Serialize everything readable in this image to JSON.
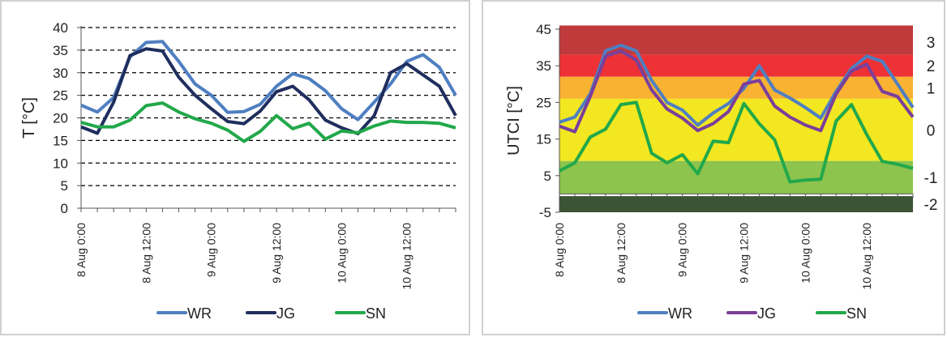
{
  "chart_data": [
    {
      "type": "line",
      "ylabel": "T [°C]",
      "ylim": [
        0,
        40
      ],
      "yticks": [
        "0",
        "5",
        "10",
        "15",
        "20",
        "25",
        "30",
        "35",
        "40"
      ],
      "grid": "dashed horizontal",
      "xtick_labels": [
        "8 Aug 0:00",
        "8 Aug 12:00",
        "9 Aug 0:00",
        "9 Aug 12:00",
        "10 Aug 0:00",
        "10 Aug 12:00"
      ],
      "legend_position": "bottom",
      "series": [
        {
          "name": "WR",
          "color": "#4f7fc1",
          "values": [
            22.8,
            21.3,
            24.5,
            33.5,
            36.7,
            36.9,
            32.5,
            27.5,
            25,
            21.2,
            21.4,
            23,
            27,
            29.8,
            28.7,
            26,
            22,
            19.6,
            23.5,
            27.5,
            32.5,
            34,
            31.2,
            25
          ]
        },
        {
          "name": "JG",
          "color": "#1f2e5e",
          "values": [
            18,
            16.6,
            23.5,
            33.8,
            35.3,
            34.8,
            29,
            25,
            22,
            19.2,
            18.7,
            21.5,
            25.8,
            27,
            24,
            19.5,
            17.8,
            16.5,
            20.5,
            30,
            32,
            29.5,
            27,
            20.5
          ]
        },
        {
          "name": "SN",
          "color": "#22a84a",
          "values": [
            19,
            18,
            18,
            19.5,
            22.7,
            23.3,
            21.3,
            19.8,
            18.8,
            17.3,
            14.8,
            17,
            20.5,
            17.6,
            18.8,
            15.3,
            17.1,
            16.7,
            18.2,
            19.3,
            19,
            19,
            18.8,
            17.8
          ]
        }
      ]
    },
    {
      "type": "line",
      "ylabel": "UTCI [°C]",
      "ylim": [
        -5,
        45
      ],
      "yticks": [
        "-5",
        "5",
        "15",
        "25",
        "35",
        "45"
      ],
      "secondary_axis_labels": [
        "3",
        "2",
        "1",
        "0",
        "-1",
        "-2"
      ],
      "bands": [
        {
          "from": 38,
          "to": 46,
          "color": "#c0393b",
          "label": "3"
        },
        {
          "from": 32,
          "to": 38,
          "color": "#ee3135",
          "label": "2"
        },
        {
          "from": 26,
          "to": 32,
          "color": "#f9b232",
          "label": "1"
        },
        {
          "from": 9,
          "to": 26,
          "color": "#f2e721",
          "label": "0"
        },
        {
          "from": 0,
          "to": 9,
          "color": "#8dc44e",
          "label": "-1"
        },
        {
          "from": -5,
          "to": -0.6,
          "color": "#3c5334",
          "label": "-2"
        }
      ],
      "xtick_labels": [
        "8 Aug 0:00",
        "8 Aug 12:00",
        "9 Aug 0:00",
        "9 Aug 12:00",
        "10 Aug 0:00",
        "10 Aug 12:00"
      ],
      "legend_position": "bottom",
      "series": [
        {
          "name": "WR",
          "color": "#4f7fc1",
          "values": [
            19.6,
            21,
            27.3,
            39.1,
            40.6,
            39.1,
            31,
            25,
            22.9,
            18.8,
            22.1,
            24.7,
            28.8,
            35,
            28.4,
            26.2,
            23.6,
            20.7,
            28,
            34.3,
            37.6,
            36.2,
            30,
            23.6
          ]
        },
        {
          "name": "JG",
          "color": "#7a3f9a",
          "values": [
            18.5,
            17,
            26.6,
            37.6,
            39.1,
            36.5,
            28.4,
            23.2,
            20.7,
            17.3,
            19.2,
            22.5,
            30,
            31,
            24,
            21,
            18.8,
            17.3,
            27.3,
            33.6,
            35.4,
            28,
            26.6,
            21
          ]
        },
        {
          "name": "SN",
          "color": "#22a84a",
          "values": [
            6.3,
            8.5,
            15.5,
            17.7,
            24.4,
            25,
            11.1,
            8.5,
            10.7,
            5.5,
            14.4,
            14,
            24.7,
            19.2,
            14.8,
            3.3,
            3.8,
            4,
            19.9,
            24.4,
            16.2,
            8.9,
            8.1,
            7
          ]
        }
      ]
    }
  ]
}
